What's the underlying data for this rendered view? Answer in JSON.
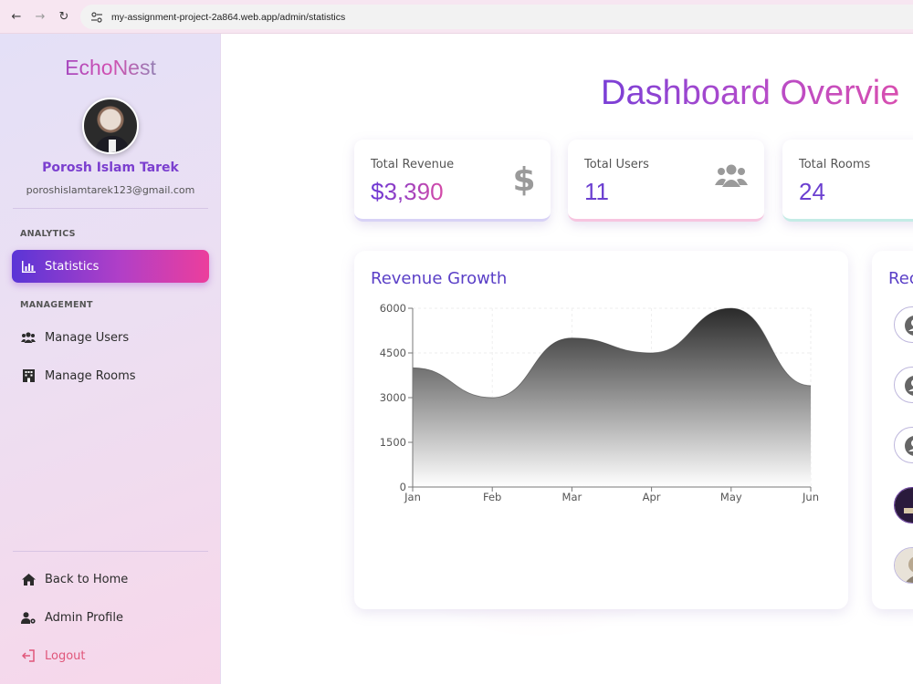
{
  "browser": {
    "url": "my-assignment-project-2a864.web.app/admin/statistics"
  },
  "sidebar": {
    "brand": "EchoNest",
    "user_name": "Porosh Islam Tarek",
    "user_email": "poroshislamtarek123@gmail.com",
    "sections": {
      "analytics": "ANALYTICS",
      "management": "MANAGEMENT"
    },
    "items": {
      "statistics": "Statistics",
      "manage_users": "Manage Users",
      "manage_rooms": "Manage Rooms",
      "back_home": "Back to Home",
      "admin_profile": "Admin Profile",
      "logout": "Logout"
    }
  },
  "main": {
    "title": "Dashboard Overvie",
    "stats": {
      "revenue_label": "Total Revenue",
      "revenue_value": "$3,390",
      "users_label": "Total Users",
      "users_value": "11",
      "rooms_label": "Total Rooms",
      "rooms_value": "24"
    },
    "chart_title": "Revenue Growth",
    "recent_title": "Rec"
  },
  "colors": {
    "accent_purple": "#6a38d6",
    "accent_pink": "#ec3e9c",
    "logout": "#e0567a"
  },
  "chart_data": {
    "type": "area",
    "categories": [
      "Jan",
      "Feb",
      "Mar",
      "Apr",
      "May",
      "Jun"
    ],
    "values": [
      4000,
      3000,
      5000,
      4500,
      6000,
      3400
    ],
    "ylim": [
      0,
      6000
    ],
    "yticks": [
      0,
      1500,
      3000,
      4500,
      6000
    ],
    "grid": true
  }
}
